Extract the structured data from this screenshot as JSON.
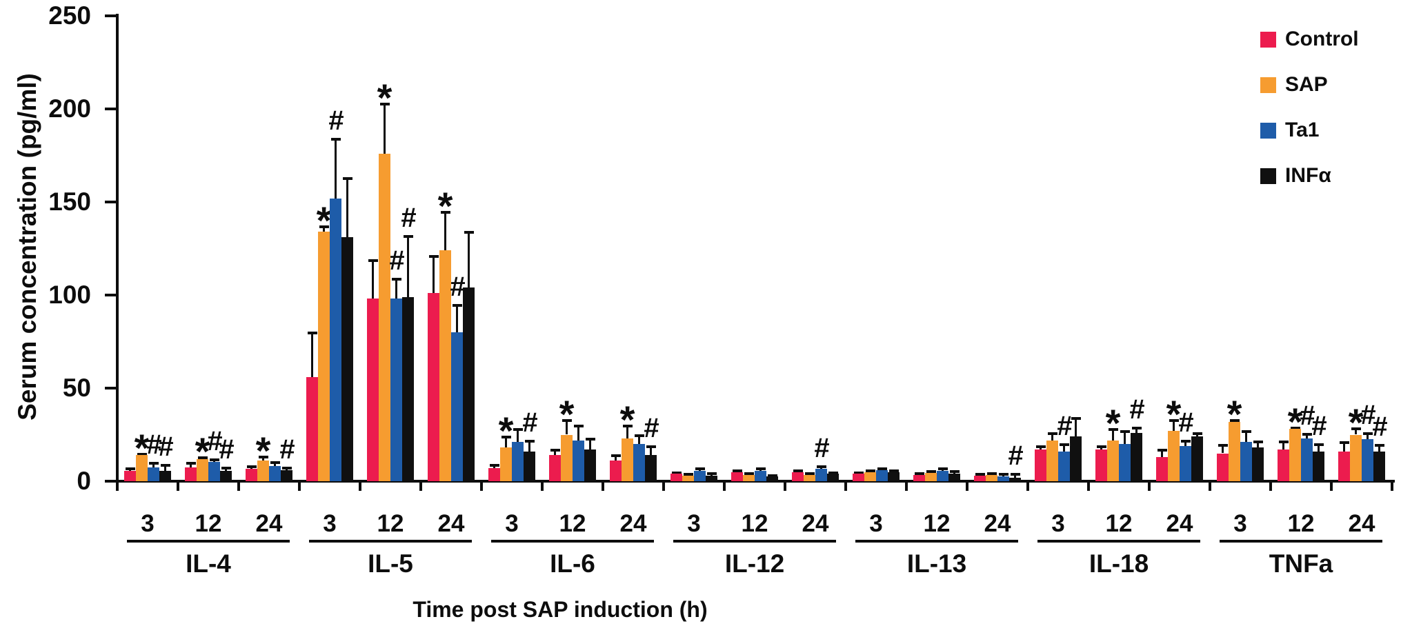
{
  "chart_data": {
    "type": "bar",
    "title": "",
    "ylabel": "Serum concentration (pg/ml)",
    "xlabel": "Time post SAP induction (h)",
    "ylim": [
      0,
      250
    ],
    "y_ticks": [
      0,
      50,
      100,
      150,
      200,
      250
    ],
    "grid": false,
    "legend_position": "top-right",
    "time_points": [
      "3",
      "12",
      "24"
    ],
    "series": [
      {
        "name": "Control",
        "color": "#EC1C4E"
      },
      {
        "name": "SAP",
        "color": "#F69C30"
      },
      {
        "name": "Ta1",
        "color": "#1E5CA9"
      },
      {
        "name": "INFα",
        "color": "#101010"
      }
    ],
    "marker_legend": {
      "star": "*",
      "hash": "#"
    },
    "groups": [
      {
        "name": "IL-4",
        "clusters": [
          {
            "time": "3",
            "bars": [
              {
                "v": 5.5,
                "e": 1.5
              },
              {
                "v": 14,
                "e": 1,
                "m": "*"
              },
              {
                "v": 7.5,
                "e": 2.5,
                "m": "#"
              },
              {
                "v": 5.5,
                "e": 3.5,
                "m": "#"
              }
            ]
          },
          {
            "time": "12",
            "bars": [
              {
                "v": 7.5,
                "e": 2.5
              },
              {
                "v": 12,
                "e": 1,
                "m": "*"
              },
              {
                "v": 10.5,
                "e": 1.5,
                "m": "#"
              },
              {
                "v": 5.5,
                "e": 2,
                "m": "#"
              }
            ]
          },
          {
            "time": "24",
            "bars": [
              {
                "v": 6.5,
                "e": 1.5
              },
              {
                "v": 11,
                "e": 2.5,
                "m": "*"
              },
              {
                "v": 8,
                "e": 2.5
              },
              {
                "v": 6,
                "e": 1.5,
                "m": "#"
              }
            ]
          }
        ]
      },
      {
        "name": "IL-5",
        "clusters": [
          {
            "time": "3",
            "bars": [
              {
                "v": 56,
                "e": 24
              },
              {
                "v": 134,
                "e": 3,
                "m": "*"
              },
              {
                "v": 152,
                "e": 32,
                "m": "#"
              },
              {
                "v": 131,
                "e": 32
              }
            ]
          },
          {
            "time": "12",
            "bars": [
              {
                "v": 98,
                "e": 21
              },
              {
                "v": 176,
                "e": 27,
                "m": "*"
              },
              {
                "v": 98,
                "e": 11,
                "m": "#"
              },
              {
                "v": 99,
                "e": 33,
                "m": "#"
              }
            ]
          },
          {
            "time": "24",
            "bars": [
              {
                "v": 101,
                "e": 20
              },
              {
                "v": 124,
                "e": 21,
                "m": "*"
              },
              {
                "v": 80,
                "e": 15,
                "m": "#"
              },
              {
                "v": 104,
                "e": 30
              }
            ]
          }
        ]
      },
      {
        "name": "IL-6",
        "clusters": [
          {
            "time": "3",
            "bars": [
              {
                "v": 7,
                "e": 2
              },
              {
                "v": 18,
                "e": 6,
                "m": "*"
              },
              {
                "v": 21,
                "e": 7
              },
              {
                "v": 16,
                "e": 6,
                "m": "#"
              }
            ]
          },
          {
            "time": "12",
            "bars": [
              {
                "v": 14,
                "e": 3
              },
              {
                "v": 25,
                "e": 8,
                "m": "*"
              },
              {
                "v": 22,
                "e": 8
              },
              {
                "v": 17,
                "e": 6
              }
            ]
          },
          {
            "time": "24",
            "bars": [
              {
                "v": 11,
                "e": 3
              },
              {
                "v": 23,
                "e": 7,
                "m": "*"
              },
              {
                "v": 20,
                "e": 5
              },
              {
                "v": 14,
                "e": 5,
                "m": "#"
              }
            ]
          }
        ]
      },
      {
        "name": "IL-12",
        "clusters": [
          {
            "time": "3",
            "bars": [
              {
                "v": 4,
                "e": 1
              },
              {
                "v": 3,
                "e": 1
              },
              {
                "v": 5.5,
                "e": 1.5
              },
              {
                "v": 3,
                "e": 1.5
              }
            ]
          },
          {
            "time": "12",
            "bars": [
              {
                "v": 5,
                "e": 1
              },
              {
                "v": 3.5,
                "e": 1
              },
              {
                "v": 5.5,
                "e": 1.5
              },
              {
                "v": 2.5,
                "e": 1
              }
            ]
          },
          {
            "time": "24",
            "bars": [
              {
                "v": 5,
                "e": 1
              },
              {
                "v": 3.5,
                "e": 1
              },
              {
                "v": 6.5,
                "e": 1.5,
                "m": "#"
              },
              {
                "v": 4,
                "e": 1
              }
            ]
          }
        ]
      },
      {
        "name": "IL-13",
        "clusters": [
          {
            "time": "3",
            "bars": [
              {
                "v": 4,
                "e": 1
              },
              {
                "v": 5,
                "e": 1
              },
              {
                "v": 6,
                "e": 1
              },
              {
                "v": 5,
                "e": 1
              }
            ]
          },
          {
            "time": "12",
            "bars": [
              {
                "v": 3.5,
                "e": 1
              },
              {
                "v": 4.5,
                "e": 1
              },
              {
                "v": 5.5,
                "e": 1.5
              },
              {
                "v": 4,
                "e": 1.5
              }
            ]
          },
          {
            "time": "24",
            "bars": [
              {
                "v": 3,
                "e": 1
              },
              {
                "v": 3.5,
                "e": 1
              },
              {
                "v": 2.5,
                "e": 1.5
              },
              {
                "v": 2,
                "e": 2,
                "m": "#"
              }
            ]
          }
        ]
      },
      {
        "name": "IL-18",
        "clusters": [
          {
            "time": "3",
            "bars": [
              {
                "v": 17,
                "e": 2
              },
              {
                "v": 22,
                "e": 4
              },
              {
                "v": 16,
                "e": 4,
                "m": "#"
              },
              {
                "v": 24,
                "e": 10
              }
            ]
          },
          {
            "time": "12",
            "bars": [
              {
                "v": 17,
                "e": 2
              },
              {
                "v": 22,
                "e": 6,
                "m": "*"
              },
              {
                "v": 20,
                "e": 7
              },
              {
                "v": 26,
                "e": 3,
                "m": "#"
              }
            ]
          },
          {
            "time": "24",
            "bars": [
              {
                "v": 13,
                "e": 4
              },
              {
                "v": 27,
                "e": 6,
                "m": "*"
              },
              {
                "v": 19,
                "e": 3,
                "m": "#"
              },
              {
                "v": 24,
                "e": 2
              }
            ]
          }
        ]
      },
      {
        "name": "TNFa",
        "clusters": [
          {
            "time": "3",
            "bars": [
              {
                "v": 15,
                "e": 4.5
              },
              {
                "v": 32,
                "e": 1,
                "m": "*"
              },
              {
                "v": 21,
                "e": 6
              },
              {
                "v": 18,
                "e": 3.5
              }
            ]
          },
          {
            "time": "12",
            "bars": [
              {
                "v": 17,
                "e": 4.5
              },
              {
                "v": 28,
                "e": 1,
                "m": "*"
              },
              {
                "v": 23,
                "e": 2.5,
                "m": "#"
              },
              {
                "v": 16,
                "e": 4,
                "m": "#"
              }
            ]
          },
          {
            "time": "24",
            "bars": [
              {
                "v": 16,
                "e": 5
              },
              {
                "v": 25,
                "e": 3.5,
                "m": "*"
              },
              {
                "v": 22.5,
                "e": 3.5,
                "m": "#"
              },
              {
                "v": 16,
                "e": 3.5,
                "m": "#"
              }
            ]
          }
        ]
      }
    ]
  }
}
